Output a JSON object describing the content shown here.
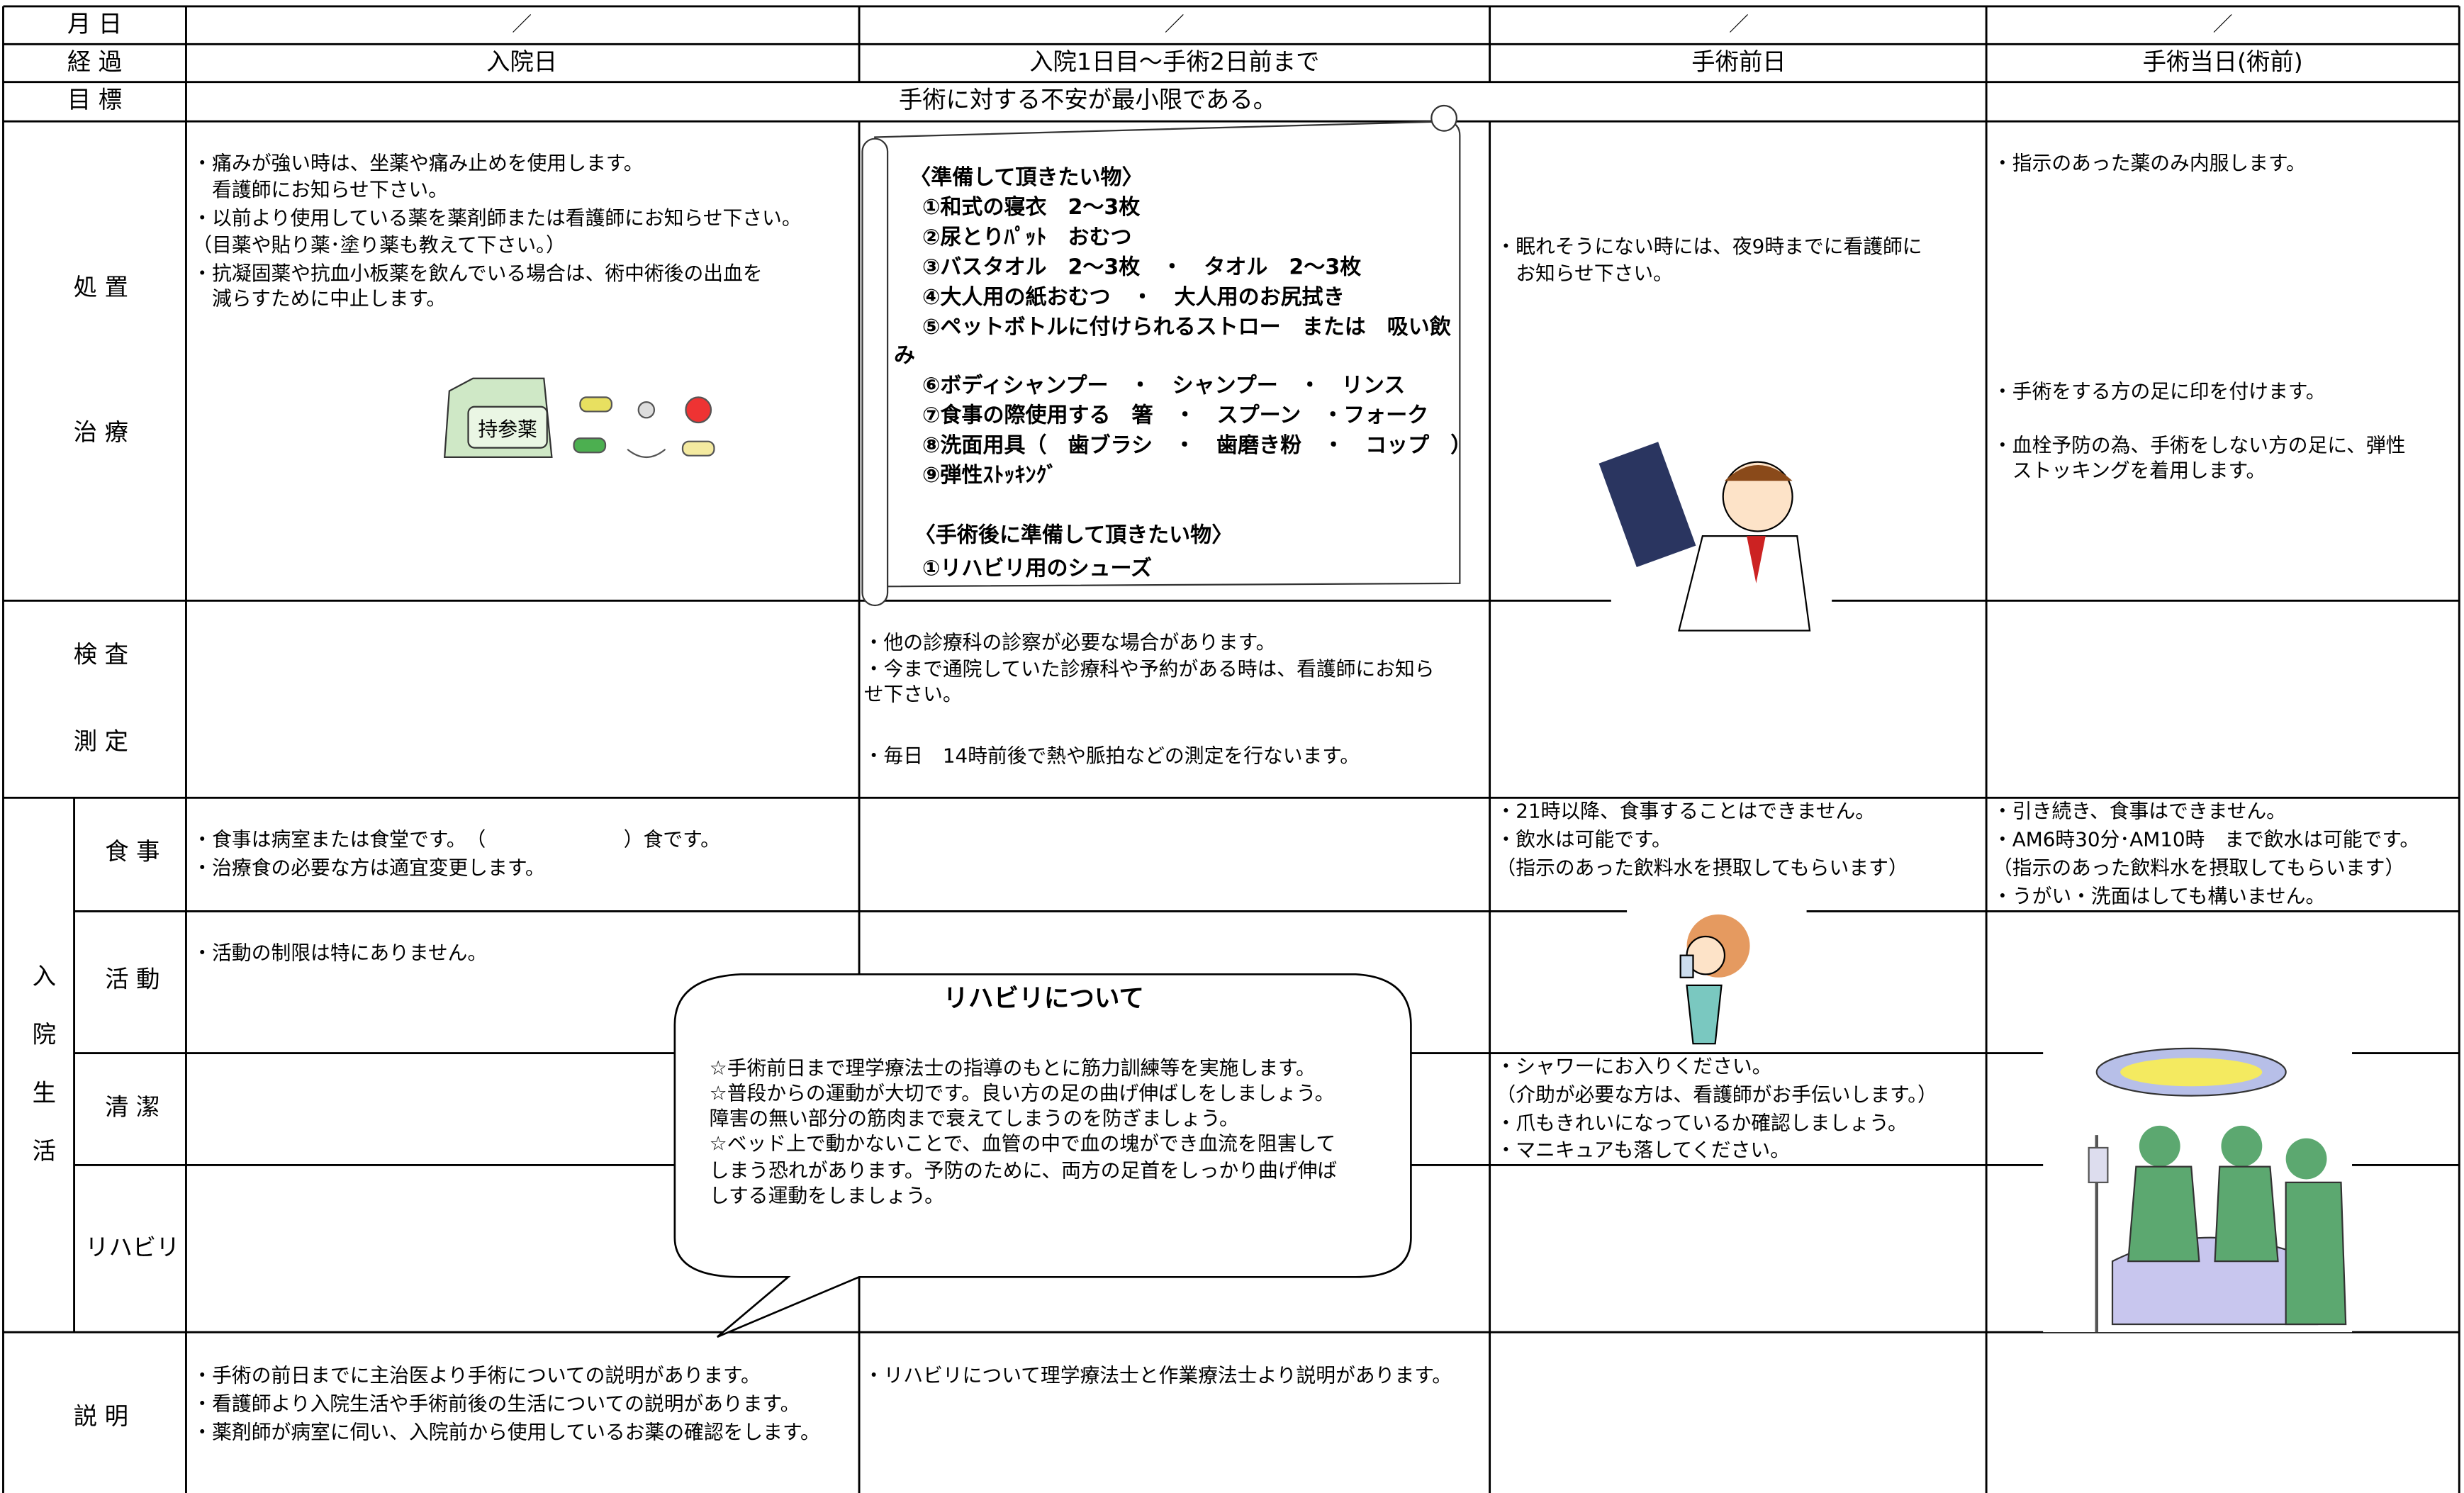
{
  "table": {
    "date_row": {
      "label": "月 日",
      "cells": [
        "／",
        "／",
        "／",
        "／"
      ]
    },
    "phase_row": {
      "label": "経 過",
      "cells": [
        "入院日",
        "入院1日目～手術2日前まで",
        "手術前日",
        "手術当日(術前)"
      ]
    },
    "goal_row": {
      "label": "目 標",
      "text": "手術に対する不安が最小限である。"
    },
    "treatment": {
      "labels": [
        "処 置",
        "治 療"
      ],
      "admission_day": [
        "・痛みが強い時は、坐薬や痛み止めを使用します。",
        "　看護師にお知らせ下さい。",
        "・以前より使用している薬を薬剤師または看護師にお知らせ下さい。",
        "（目薬や貼り薬･塗り薬も教えて下さい。）",
        "・抗凝固薬や抗血小板薬を飲んでいる場合は、術中術後の出血を",
        "　減らすために中止します。"
      ],
      "pill_bag_label": "持参薬",
      "day_before": [
        "・眠れそうにない時には、夜9時までに看護師に",
        "　お知らせ下さい。"
      ],
      "surgery_day": [
        "・指示のあった薬のみ内服します。",
        "・手術をする方の足に印を付けます。",
        "・血栓予防の為、手術をしない方の足に、弾性",
        "　ストッキングを着用します。"
      ]
    },
    "checklist": {
      "title": "〈準備して頂きたい物〉",
      "items": [
        "①和式の寝衣　2～3枚",
        "②尿とりﾊﾟｯﾄ　おむつ",
        "③バスタオル　2～3枚　・　タオル　2～3枚",
        "④大人用の紙おむつ　・　大人用のお尻拭き",
        "⑤ペットボトルに付けられるストロー　または　吸い飲",
        "み",
        "⑥ボディシャンプー　・　シャンプー　・　リンス",
        "⑦食事の際使用する　箸　・　スプーン　・フォーク",
        "⑧洗面用具（　歯ブラシ　・　歯磨き粉　・　コップ　）",
        "⑨弾性ｽﾄｯｷﾝｸﾞ"
      ],
      "after_title": "〈手術後に準備して頂きたい物〉",
      "after_items": [
        "①リハビリ用のシューズ"
      ]
    },
    "exam": {
      "labels": [
        "検 査",
        "測 定"
      ],
      "hospital_days": [
        "・他の診療科の診察が必要な場合があります。",
        "・今まで通院していた診療科や予約がある時は、看護師にお知ら",
        "せ下さい。",
        "・毎日　14時前後で熱や脈拍などの測定を行ないます。"
      ]
    },
    "life": {
      "label": [
        "入",
        "院",
        "生",
        "活"
      ],
      "meal": {
        "label": "食 事",
        "admission_day": [
          "・食事は病室または食堂です。　（　　　　　　　）食です。",
          "・治療食の必要な方は適宜変更します。"
        ],
        "day_before": [
          "・21時以降、食事することはできません。",
          "・飲水は可能です。",
          "（指示のあった飲料水を摂取してもらいます）"
        ],
        "surgery_day": [
          "・引き続き、食事はできません。",
          "・AM6時30分･AM10時　まで飲水は可能です。",
          "（指示のあった飲料水を摂取してもらいます）",
          "・うがい・洗面はしても構いません。"
        ]
      },
      "activity": {
        "label": "活 動",
        "admission_day": [
          "・活動の制限は特にありません。"
        ]
      },
      "hygiene": {
        "label": "清 潔",
        "day_before": [
          "・シャワーにお入りください。",
          "（介助が必要な方は、看護師がお手伝いします。）",
          "・爪もきれいになっているか確認しましょう。",
          "・マニキュアも落してください。"
        ]
      },
      "rehab": {
        "label": "リハビリ"
      }
    },
    "rehab_callout": {
      "title": "リハビリについて",
      "lines": [
        "☆手術前日まで理学療法士の指導のもとに筋力訓練等を実施します。",
        "☆普段からの運動が大切です。良い方の足の曲げ伸ばしをしましょう。",
        "障害の無い部分の筋肉まで衰えてしまうのを防ぎましょう。",
        "☆ベッド上で動かないことで、血管の中で血の塊ができ血流を阻害して",
        "しまう恐れがあります。予防のために、両方の足首をしっかり曲げ伸ば",
        "しする運動をしましょう。"
      ]
    },
    "explanation": {
      "label": "説 明",
      "admission_day": [
        "・手術の前日までに主治医より手術についての説明があります。",
        "・看護師より入院生活や手術前後の生活についての説明があります。",
        "・薬剤師が病室に伺い、入院前から使用しているお薬の確認をします。"
      ],
      "hospital_days": [
        "・リハビリについて理学療法士と作業療法士より説明があります。"
      ]
    }
  }
}
